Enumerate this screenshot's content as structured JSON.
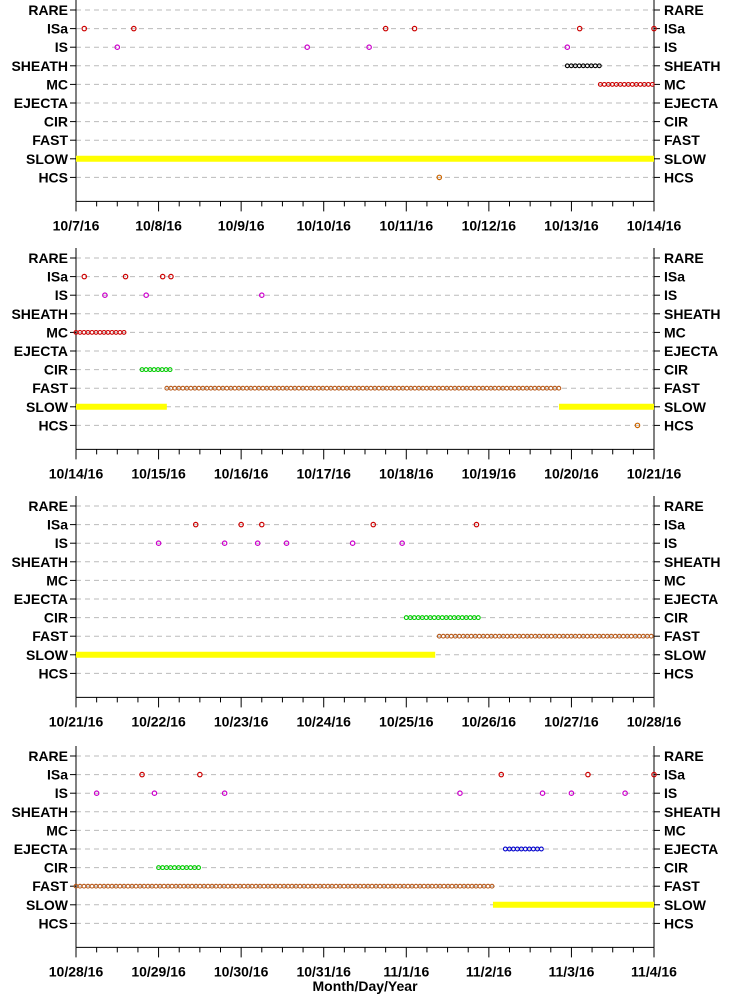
{
  "x_axis_label": "Month/Day/Year",
  "categories": [
    "RARE",
    "ISa",
    "IS",
    "SHEATH",
    "MC",
    "EJECTA",
    "CIR",
    "FAST",
    "SLOW",
    "HCS"
  ],
  "colors": {
    "ISa": "#cc0000",
    "IS": "#cc00cc",
    "SHEATH": "#000000",
    "MC": "#cc0000",
    "EJECTA": "#0000cc",
    "CIR": "#00cc00",
    "FAST": "#b85a1a",
    "SLOW": "#ffff00",
    "HCS": "#cc6600",
    "gridline": "#bbbbbb"
  },
  "chart_data": [
    {
      "type": "scatter",
      "x_ticks": [
        "10/7/16",
        "10/8/16",
        "10/9/16",
        "10/10/16",
        "10/11/16",
        "10/12/16",
        "10/13/16",
        "10/14/16"
      ],
      "xlim": [
        "2016-10-07",
        "2016-10-14"
      ],
      "grid": true,
      "points": [
        {
          "category": "ISa",
          "times": [
            0.1,
            0.7,
            3.75,
            4.1,
            6.1,
            7.0
          ]
        },
        {
          "category": "IS",
          "times": [
            0.5,
            2.8,
            3.55,
            5.95
          ]
        },
        {
          "category": "HCS",
          "times": [
            4.4
          ]
        }
      ],
      "intervals": [
        {
          "category": "SHEATH",
          "start": 5.95,
          "end": 6.35
        },
        {
          "category": "MC",
          "start": 6.35,
          "end": 7.0
        },
        {
          "category": "SLOW",
          "start": 0.0,
          "end": 7.0
        }
      ]
    },
    {
      "type": "scatter",
      "x_ticks": [
        "10/14/16",
        "10/15/16",
        "10/16/16",
        "10/17/16",
        "10/18/16",
        "10/19/16",
        "10/20/16",
        "10/21/16"
      ],
      "xlim": [
        "2016-10-14",
        "2016-10-21"
      ],
      "grid": true,
      "points": [
        {
          "category": "ISa",
          "times": [
            0.1,
            0.6,
            1.05,
            1.15
          ]
        },
        {
          "category": "IS",
          "times": [
            0.35,
            0.85,
            2.25
          ]
        },
        {
          "category": "HCS",
          "times": [
            6.8
          ]
        }
      ],
      "intervals": [
        {
          "category": "MC",
          "start": 0.0,
          "end": 0.6
        },
        {
          "category": "CIR",
          "start": 0.8,
          "end": 1.15
        },
        {
          "category": "FAST",
          "start": 1.1,
          "end": 5.85
        },
        {
          "category": "SLOW",
          "start": 0.0,
          "end": 1.1
        },
        {
          "category": "SLOW",
          "start": 5.85,
          "end": 7.0
        }
      ]
    },
    {
      "type": "scatter",
      "x_ticks": [
        "10/21/16",
        "10/22/16",
        "10/23/16",
        "10/24/16",
        "10/25/16",
        "10/26/16",
        "10/27/16",
        "10/28/16"
      ],
      "xlim": [
        "2016-10-21",
        "2016-10-28"
      ],
      "grid": true,
      "points": [
        {
          "category": "ISa",
          "times": [
            1.45,
            2.0,
            2.25,
            3.6,
            4.85
          ]
        },
        {
          "category": "IS",
          "times": [
            1.0,
            1.8,
            2.2,
            2.55,
            3.35,
            3.95
          ]
        }
      ],
      "intervals": [
        {
          "category": "CIR",
          "start": 4.0,
          "end": 4.9
        },
        {
          "category": "FAST",
          "start": 4.4,
          "end": 7.0
        },
        {
          "category": "SLOW",
          "start": 0.0,
          "end": 4.35
        }
      ]
    },
    {
      "type": "scatter",
      "x_ticks": [
        "10/28/16",
        "10/29/16",
        "10/30/16",
        "10/31/16",
        "11/1/16",
        "11/2/16",
        "11/3/16",
        "11/4/16"
      ],
      "xlim": [
        "2016-10-28",
        "2016-11-04"
      ],
      "grid": true,
      "points": [
        {
          "category": "ISa",
          "times": [
            0.8,
            1.5,
            5.15,
            6.2,
            7.0
          ]
        },
        {
          "category": "IS",
          "times": [
            0.25,
            0.95,
            1.8,
            4.65,
            5.65,
            6.0,
            6.65
          ]
        }
      ],
      "intervals": [
        {
          "category": "CIR",
          "start": 1.0,
          "end": 1.5
        },
        {
          "category": "FAST",
          "start": 0.0,
          "end": 5.05
        },
        {
          "category": "EJECTA",
          "start": 5.2,
          "end": 5.65
        },
        {
          "category": "SLOW",
          "start": 5.05,
          "end": 7.0
        }
      ]
    }
  ]
}
